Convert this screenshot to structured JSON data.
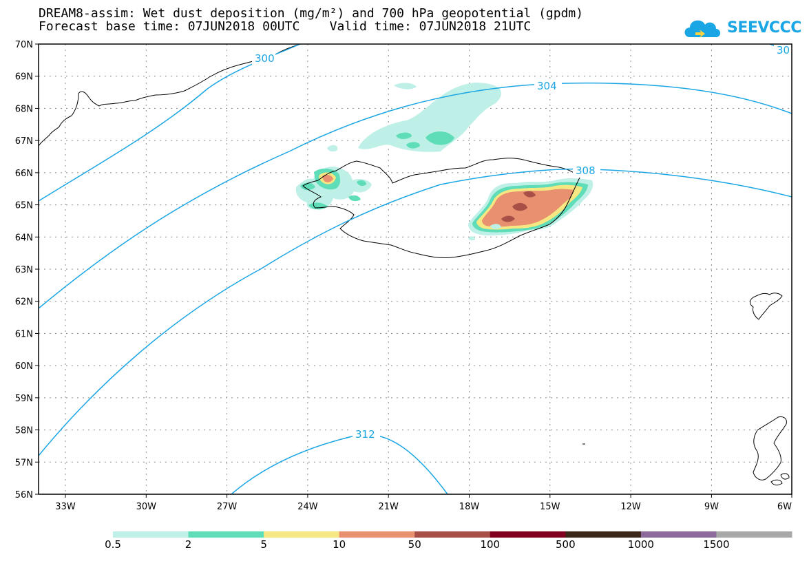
{
  "header": {
    "title_line1": "DREAM8-assim: Wet dust deposition (mg/m²) and 700 hPa geopotential (gpdm)",
    "title_line2": "Forecast base time: 07JUN2018 00UTC    Valid time: 07JUN2018 21UTC",
    "logo_text": "SEEVCCC"
  },
  "map": {
    "lat_labels": [
      "70N",
      "69N",
      "68N",
      "67N",
      "66N",
      "65N",
      "64N",
      "63N",
      "62N",
      "61N",
      "60N",
      "59N",
      "58N",
      "57N",
      "56N"
    ],
    "lon_labels": [
      "33W",
      "30W",
      "27W",
      "24W",
      "21W",
      "18W",
      "15W",
      "12W",
      "9W",
      "6W"
    ],
    "contour_labels": [
      "300",
      "304",
      "308",
      "312",
      "30"
    ],
    "contour_color": "#1aa6e4",
    "coast_color": "#000000"
  },
  "colorbar": {
    "labels": [
      "0.5",
      "2",
      "5",
      "10",
      "50",
      "100",
      "500",
      "1000",
      "1500"
    ],
    "colors": [
      "#bff0e8",
      "#5fdcb8",
      "#f5e882",
      "#e89070",
      "#a85048",
      "#800020",
      "#3c2818",
      "#8c6a9c",
      "#a8a8a8"
    ]
  }
}
